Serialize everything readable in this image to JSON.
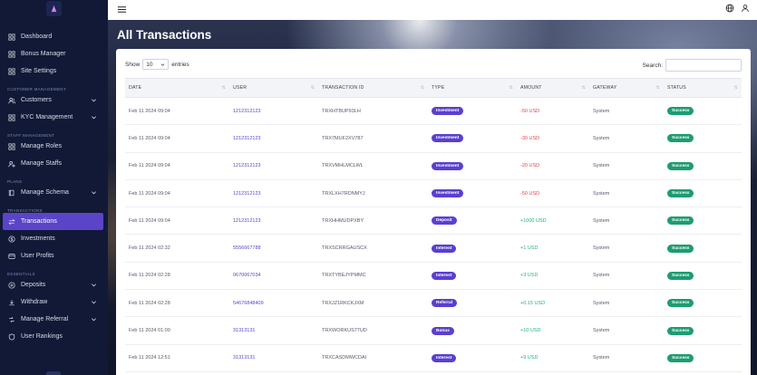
{
  "sidebar": {
    "items": [
      {
        "label": "Dashboard",
        "icon": "grid-icon"
      },
      {
        "label": "Bonus Manager",
        "icon": "grid-icon"
      },
      {
        "label": "Site Settings",
        "icon": "grid-icon"
      }
    ],
    "sections": [
      {
        "title": "CUSTOMER MANAGEMENT",
        "items": [
          {
            "label": "Customers",
            "icon": "users-icon",
            "chevron": true
          },
          {
            "label": "KYC Management",
            "icon": "grid-icon",
            "chevron": true
          }
        ]
      },
      {
        "title": "STAFF MANAGEMENT",
        "items": [
          {
            "label": "Manage Roles",
            "icon": "grid-icon"
          },
          {
            "label": "Manage Staffs",
            "icon": "user-gear-icon"
          }
        ]
      },
      {
        "title": "PLANS",
        "items": [
          {
            "label": "Manage Schema",
            "icon": "book-icon",
            "chevron": true
          }
        ]
      },
      {
        "title": "TRANSACTIONS",
        "items": [
          {
            "label": "Transactions",
            "icon": "swap-icon",
            "active": true
          },
          {
            "label": "Investments",
            "icon": "dollar-icon"
          },
          {
            "label": "User Profits",
            "icon": "wallet-icon"
          }
        ]
      },
      {
        "title": "ESSENTIALS",
        "items": [
          {
            "label": "Deposits",
            "icon": "plus-circle-icon",
            "chevron": true
          },
          {
            "label": "Withdraw",
            "icon": "withdraw-icon",
            "chevron": true
          },
          {
            "label": "Manage Referral",
            "icon": "referral-icon",
            "chevron": true
          },
          {
            "label": "User Rankings",
            "icon": "badge-icon"
          }
        ]
      }
    ]
  },
  "page": {
    "title": "All Transactions"
  },
  "controls": {
    "show_label": "Show",
    "entries_value": "10",
    "entries_label": "entries",
    "search_label": "Search:",
    "search_value": ""
  },
  "table": {
    "headers": [
      "DATE",
      "USER",
      "TRANSACTION ID",
      "TYPE",
      "AMOUNT",
      "GATEWAY",
      "STATUS"
    ],
    "rows": [
      {
        "date": "Feb 11 2024 09:04",
        "user": "1212312123",
        "txid": "TRXHTBUP93LH",
        "type": "Investment",
        "amount": "-50 USD",
        "sign": "neg",
        "gateway": "System",
        "status": "Success"
      },
      {
        "date": "Feb 11 2024 09:04",
        "user": "1212312123",
        "txid": "TRX7MUF2XV787",
        "type": "Investment",
        "amount": "-30 USD",
        "sign": "neg",
        "gateway": "System",
        "status": "Success"
      },
      {
        "date": "Feb 11 2024 09:04",
        "user": "1212312123",
        "txid": "TRXVMHLMCLWL",
        "type": "Investment",
        "amount": "-20 USD",
        "sign": "neg",
        "gateway": "System",
        "status": "Success"
      },
      {
        "date": "Feb 11 2024 09:04",
        "user": "1212312123",
        "txid": "TRXLXH7RDNMYJ",
        "type": "Investment",
        "amount": "-50 USD",
        "sign": "neg",
        "gateway": "System",
        "status": "Success"
      },
      {
        "date": "Feb 11 2024 09:04",
        "user": "1212312123",
        "txid": "TRXHHMUDPXBY",
        "type": "Deposit",
        "amount": "+1000 USD",
        "sign": "pos",
        "gateway": "System",
        "status": "Success"
      },
      {
        "date": "Feb 11 2024 02:32",
        "user": "5556667788",
        "txid": "TRXSCRRGAUSCX",
        "type": "Interest",
        "amount": "+1 USD",
        "sign": "pos",
        "gateway": "System",
        "status": "Success"
      },
      {
        "date": "Feb 11 2024 02:28",
        "user": "0670067034",
        "txid": "TRXTYBEJYPMMC",
        "type": "Interest",
        "amount": "+3 USD",
        "sign": "pos",
        "gateway": "System",
        "status": "Success"
      },
      {
        "date": "Feb 11 2024 02:28",
        "user": "54676848409",
        "txid": "TRXJZ1RKCKJXM",
        "type": "Referral",
        "amount": "+0.15 USD",
        "sign": "pos",
        "gateway": "System",
        "status": "Success"
      },
      {
        "date": "Feb 11 2024 01:00",
        "user": "31313131",
        "txid": "TRXWORKUS77UD",
        "type": "Bonus",
        "amount": "+10 USD",
        "sign": "pos",
        "gateway": "System",
        "status": "Success"
      },
      {
        "date": "Feb 11 2024 12:51",
        "user": "31313131",
        "txid": "TRXCASDMWCDAI",
        "type": "Interest",
        "amount": "+9 USD",
        "sign": "pos",
        "gateway": "System",
        "status": "Success"
      }
    ]
  },
  "colors": {
    "sidebar_bg": "#111936",
    "accent": "#5a45c8",
    "success": "#1d9c73",
    "negative": "#e0454e",
    "positive": "#1fb47a"
  }
}
